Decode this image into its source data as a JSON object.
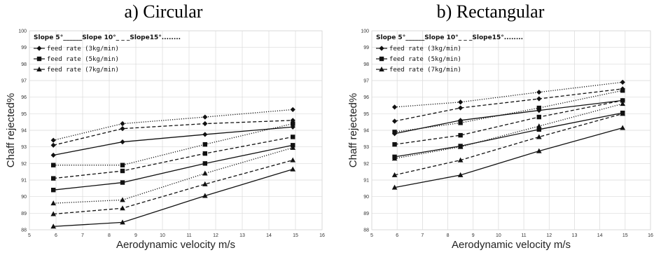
{
  "chart_data": [
    {
      "type": "line",
      "title": "a) Circular",
      "xlabel": "Aerodynamic velocity  m/s",
      "ylabel": "Chaff rejected%",
      "xlim": [
        5,
        16
      ],
      "ylim": [
        88,
        100
      ],
      "x_ticks": [
        5,
        6,
        7,
        8,
        9,
        10,
        11,
        12,
        13,
        14,
        15,
        16
      ],
      "y_ticks": [
        88,
        89,
        90,
        91,
        92,
        93,
        94,
        95,
        96,
        97,
        98,
        99,
        100
      ],
      "grid": true,
      "legend_slopes": "Slope 5°______Slope 10°_ _ _Slope15°........",
      "legend_markers": [
        {
          "marker": "diamond",
          "label": "feed rate (3kg/min)"
        },
        {
          "marker": "square",
          "label": "feed rate (5kg/min)"
        },
        {
          "marker": "triangle",
          "label": "feed rate (7kg/min)"
        }
      ],
      "x": [
        5.9,
        8.5,
        11.6,
        14.9
      ],
      "series": [
        {
          "feed": "3",
          "slope": "5",
          "marker": "diamond",
          "style": "solid",
          "values": [
            92.5,
            93.3,
            93.75,
            94.2
          ]
        },
        {
          "feed": "3",
          "slope": "10",
          "marker": "diamond",
          "style": "dashed",
          "values": [
            93.1,
            94.1,
            94.4,
            94.6
          ]
        },
        {
          "feed": "3",
          "slope": "15",
          "marker": "diamond",
          "style": "dotted",
          "values": [
            93.4,
            94.4,
            94.8,
            95.25
          ]
        },
        {
          "feed": "5",
          "slope": "5",
          "marker": "square",
          "style": "solid",
          "values": [
            90.4,
            90.85,
            92.0,
            93.1
          ]
        },
        {
          "feed": "5",
          "slope": "10",
          "marker": "square",
          "style": "dashed",
          "values": [
            91.1,
            91.55,
            92.6,
            93.6
          ]
        },
        {
          "feed": "5",
          "slope": "15",
          "marker": "square",
          "style": "dotted",
          "values": [
            91.9,
            91.9,
            93.15,
            94.4
          ]
        },
        {
          "feed": "7",
          "slope": "5",
          "marker": "triangle",
          "style": "solid",
          "values": [
            88.2,
            88.45,
            90.05,
            91.65
          ]
        },
        {
          "feed": "7",
          "slope": "10",
          "marker": "triangle",
          "style": "dashed",
          "values": [
            88.95,
            89.3,
            90.75,
            92.2
          ]
        },
        {
          "feed": "7",
          "slope": "15",
          "marker": "triangle",
          "style": "dotted",
          "values": [
            89.6,
            89.8,
            91.4,
            92.95
          ]
        }
      ]
    },
    {
      "type": "line",
      "title": "b) Rectangular",
      "xlabel": "Aerodynamic velocity  m/s",
      "ylabel": "Chaff rejected%",
      "xlim": [
        5,
        16
      ],
      "ylim": [
        88,
        100
      ],
      "x_ticks": [
        5,
        6,
        7,
        8,
        9,
        10,
        11,
        12,
        13,
        14,
        15,
        16
      ],
      "y_ticks": [
        88,
        89,
        90,
        91,
        92,
        93,
        94,
        95,
        96,
        97,
        98,
        99,
        100
      ],
      "grid": true,
      "legend_slopes": "Slope 5°______Slope 10°_ _ _Slope15°........",
      "legend_markers": [
        {
          "marker": "diamond",
          "label": "feed rate (3kg/min)"
        },
        {
          "marker": "square",
          "label": "feed rate (5kg/min)"
        },
        {
          "marker": "triangle",
          "label": "feed rate (7kg/min)"
        }
      ],
      "x": [
        5.9,
        8.5,
        11.6,
        14.9
      ],
      "series": [
        {
          "feed": "3",
          "slope": "5",
          "marker": "diamond",
          "style": "solid",
          "values": [
            93.8,
            94.6,
            95.2,
            95.8
          ]
        },
        {
          "feed": "3",
          "slope": "10",
          "marker": "diamond",
          "style": "dashed",
          "values": [
            94.55,
            95.35,
            95.9,
            96.5
          ]
        },
        {
          "feed": "3",
          "slope": "15",
          "marker": "diamond",
          "style": "dotted",
          "values": [
            95.4,
            95.7,
            96.3,
            96.9
          ]
        },
        {
          "feed": "5",
          "slope": "5",
          "marker": "square",
          "style": "solid",
          "values": [
            92.4,
            93.05,
            94.05,
            95.05
          ]
        },
        {
          "feed": "5",
          "slope": "10",
          "marker": "square",
          "style": "dashed",
          "values": [
            93.15,
            93.7,
            94.8,
            95.8
          ]
        },
        {
          "feed": "5",
          "slope": "15",
          "marker": "square",
          "style": "dotted",
          "values": [
            93.9,
            94.45,
            95.35,
            96.4
          ]
        },
        {
          "feed": "7",
          "slope": "5",
          "marker": "triangle",
          "style": "solid",
          "values": [
            90.55,
            91.3,
            92.75,
            94.15
          ]
        },
        {
          "feed": "7",
          "slope": "10",
          "marker": "triangle",
          "style": "dashed",
          "values": [
            91.3,
            92.2,
            93.6,
            95.0
          ]
        },
        {
          "feed": "7",
          "slope": "15",
          "marker": "triangle",
          "style": "dotted",
          "values": [
            92.3,
            93.0,
            94.25,
            95.6
          ]
        }
      ]
    }
  ]
}
